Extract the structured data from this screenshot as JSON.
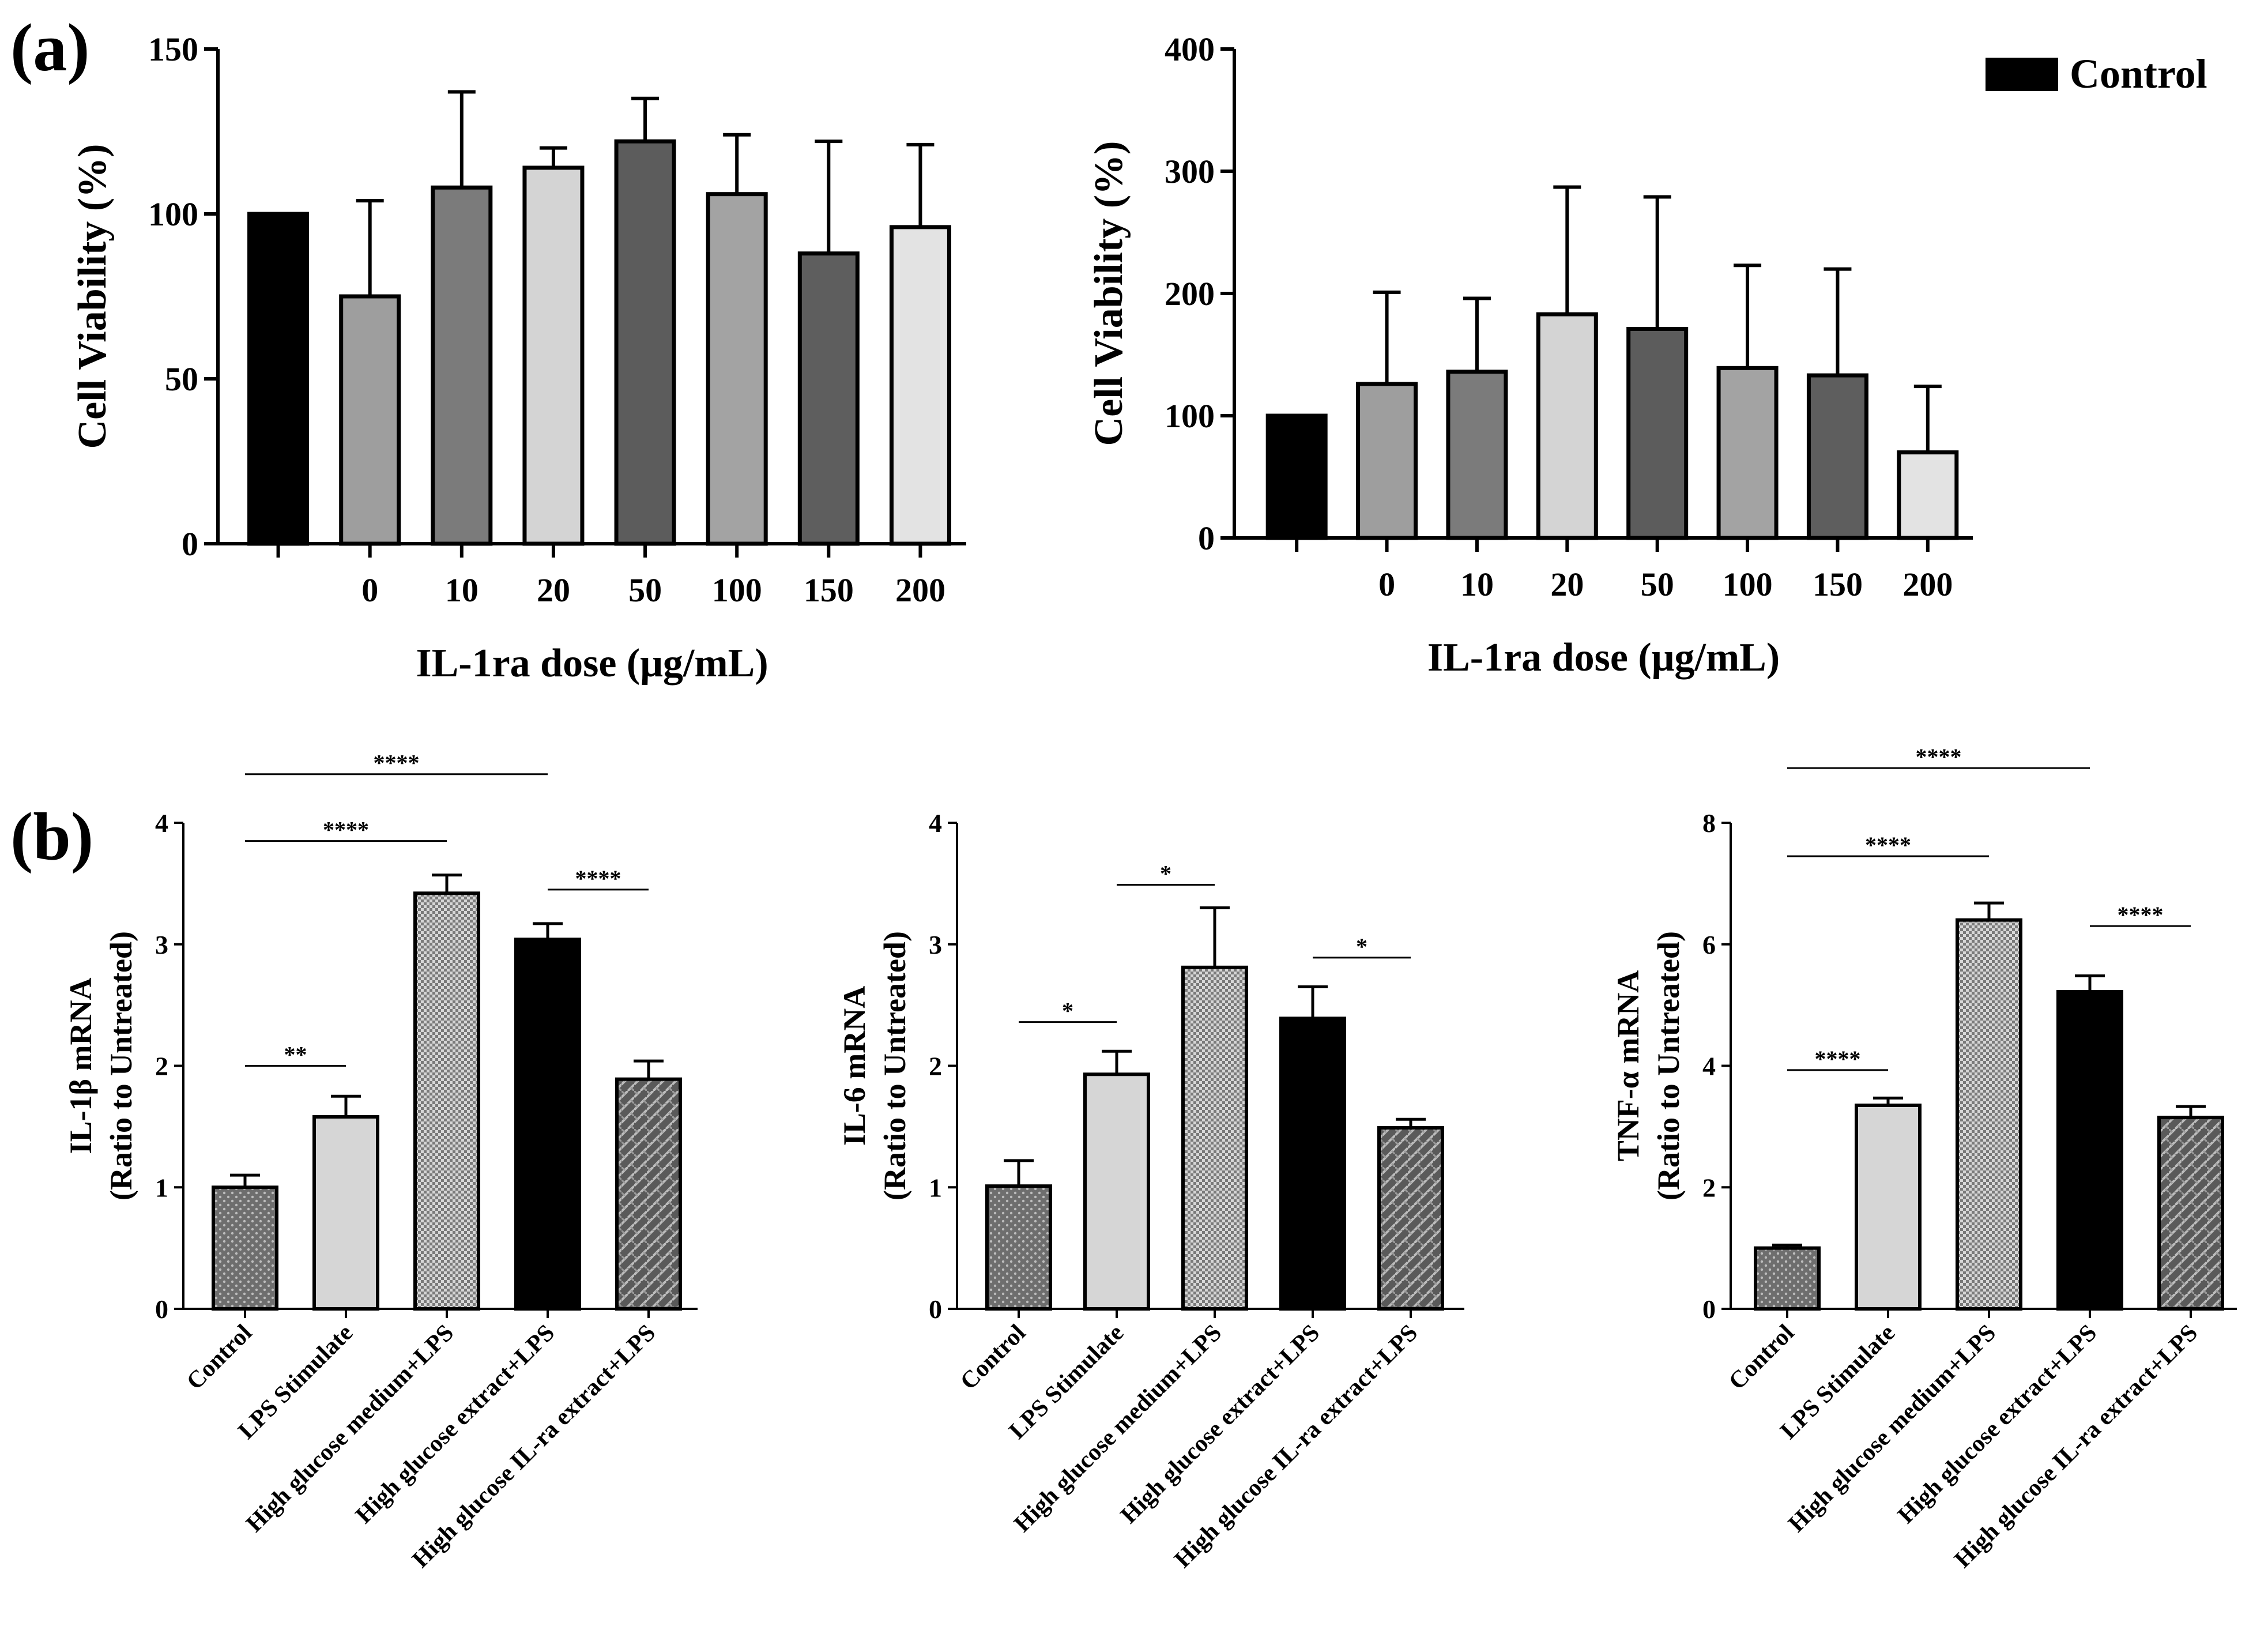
{
  "panel_labels": [
    "(a)",
    "(b)"
  ],
  "legend": {
    "label": "Control",
    "color": "#000000"
  },
  "chart_data": [
    {
      "type": "bar",
      "panel": "(a)",
      "title": "",
      "xlabel": "IL-1ra dose (μg/mL)",
      "ylabel": "Cell Viability (%)",
      "ylim": [
        0,
        150
      ],
      "yticks": [
        "0",
        "50",
        "100",
        "150"
      ],
      "categories": [
        "",
        "0",
        "10",
        "20",
        "50",
        "100",
        "150",
        "200"
      ],
      "values": [
        100,
        75,
        108,
        114,
        122,
        106,
        88,
        96
      ],
      "errors": [
        0,
        29,
        29,
        6,
        13,
        18,
        34,
        25
      ],
      "colors": [
        "#000000",
        "#9e9e9e",
        "#7b7b7b",
        "#d4d4d4",
        "#5c5c5c",
        "#a3a3a3",
        "#5e5e5e",
        "#e3e3e3"
      ]
    },
    {
      "type": "bar",
      "panel": "(a)",
      "title": "",
      "xlabel": "IL-1ra dose (μg/mL)",
      "ylabel": "Cell Viability (%)",
      "ylim": [
        0,
        400
      ],
      "yticks": [
        "0",
        "100",
        "200",
        "300",
        "400"
      ],
      "categories": [
        "",
        "0",
        "10",
        "20",
        "50",
        "100",
        "150",
        "200"
      ],
      "values": [
        100,
        126,
        136,
        183,
        171,
        139,
        133,
        70
      ],
      "errors": [
        0,
        75,
        60,
        104,
        108,
        84,
        87,
        54
      ],
      "colors": [
        "#000000",
        "#9e9e9e",
        "#7b7b7b",
        "#d4d4d4",
        "#5c5c5c",
        "#a3a3a3",
        "#5e5e5e",
        "#e3e3e3"
      ]
    },
    {
      "type": "bar",
      "panel": "(b)",
      "ylabel": "IL-1β mRNA",
      "ylabel2": "(Ratio to Untreated)",
      "ylim": [
        0,
        4
      ],
      "yticks": [
        "0",
        "1",
        "2",
        "3",
        "4"
      ],
      "categories": [
        "Control",
        "LPS Stimulate",
        "High glucose medium+LPS",
        "High glucose extract+LPS",
        "High glucose IL-ra extract+LPS"
      ],
      "values": [
        1.0,
        1.58,
        3.42,
        3.04,
        1.89
      ],
      "errors": [
        0.1,
        0.17,
        0.15,
        0.13,
        0.15
      ],
      "significance": [
        {
          "from": 0,
          "to": 1,
          "label": "**",
          "y": 2.0
        },
        {
          "from": 0,
          "to": 2,
          "label": "****",
          "y": 3.85
        },
        {
          "from": 3,
          "to": 4,
          "label": "****",
          "y": 3.45
        },
        {
          "from": 0,
          "to": 3,
          "label": "****",
          "y": 4.4
        }
      ]
    },
    {
      "type": "bar",
      "panel": "(b)",
      "ylabel": "IL-6 mRNA",
      "ylabel2": "(Ratio to Untreated)",
      "ylim": [
        0,
        4
      ],
      "yticks": [
        "0",
        "1",
        "2",
        "3",
        "4"
      ],
      "categories": [
        "Control",
        "LPS Stimulate",
        "High glucose medium+LPS",
        "High glucose extract+LPS",
        "High glucose IL-ra extract+LPS"
      ],
      "values": [
        1.01,
        1.93,
        2.81,
        2.39,
        1.49
      ],
      "errors": [
        0.21,
        0.19,
        0.49,
        0.26,
        0.07
      ],
      "significance": [
        {
          "from": 0,
          "to": 1,
          "label": "*",
          "y": 2.36
        },
        {
          "from": 1,
          "to": 2,
          "label": "*",
          "y": 3.49
        },
        {
          "from": 3,
          "to": 4,
          "label": "*",
          "y": 2.89
        }
      ]
    },
    {
      "type": "bar",
      "panel": "(b)",
      "ylabel": "TNF-α mRNA",
      "ylabel2": "(Ratio to Untreated)",
      "ylim": [
        0,
        8
      ],
      "yticks": [
        "0",
        "2",
        "4",
        "6",
        "8"
      ],
      "categories": [
        "Control",
        "LPS Stimulate",
        "High glucose medium+LPS",
        "High glucose extract+LPS",
        "High glucose IL-ra extract+LPS"
      ],
      "values": [
        1.0,
        3.35,
        6.4,
        5.22,
        3.15
      ],
      "errors": [
        0.05,
        0.12,
        0.28,
        0.26,
        0.18
      ],
      "significance": [
        {
          "from": 0,
          "to": 1,
          "label": "****",
          "y": 3.93
        },
        {
          "from": 0,
          "to": 2,
          "label": "****",
          "y": 7.45
        },
        {
          "from": 3,
          "to": 4,
          "label": "****",
          "y": 6.3
        },
        {
          "from": 0,
          "to": 3,
          "label": "****",
          "y": 8.9
        }
      ]
    }
  ]
}
